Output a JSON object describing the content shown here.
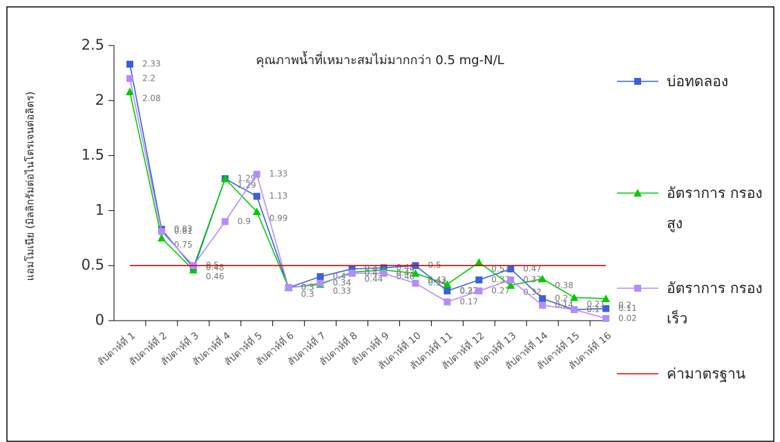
{
  "chart_data": {
    "type": "line",
    "title": "คุณภาพน้ำที่เหมาะสมไม่มากกว่า 0.5 mg-N/L",
    "y_label": "แอมโมเนีย (มิลลิกรัมต่อไนโตรเจนต่อลิตร)",
    "categories": [
      "สัปดาห์ที่ 1",
      "สัปดาห์ที่ 2",
      "สัปดาห์ที่ 3",
      "สัปดาห์ที่ 4",
      "สัปดาห์ที่ 5",
      "สัปดาห์ที่ 6",
      "สัปดาห์ที่ 7",
      "สัปดาห์ที่ 8",
      "สัปดาห์ที่ 9",
      "สัปดาห์ที่ 10",
      "สัปดาห์ที่ 11",
      "สัปดาห์ที่ 12",
      "สัปดาห์ที่ 13",
      "สัปดาห์ที่ 14",
      "สัปดาห์ที่ 15",
      "สัปดาห์ที่ 16"
    ],
    "series": [
      {
        "name": "บ่อทดลอง",
        "color": "#3a5fe0",
        "marker": "square",
        "values": [
          2.33,
          0.83,
          0.48,
          1.29,
          1.13,
          0.3,
          0.4,
          0.47,
          0.48,
          0.5,
          0.27,
          0.37,
          0.47,
          0.2,
          0.1,
          0.11
        ]
      },
      {
        "name": "อัตราการ กรองสูง",
        "color": "#00cc00",
        "marker": "triangle",
        "values": [
          2.08,
          0.75,
          0.46,
          1.29,
          0.99,
          0.3,
          0.33,
          0.44,
          0.46,
          0.43,
          0.33,
          0.53,
          0.32,
          0.38,
          0.21,
          0.2
        ]
      },
      {
        "name": "อัตราการ กรองเร็ว",
        "color": "#b48cff",
        "marker": "square",
        "values": [
          2.2,
          0.81,
          0.5,
          0.9,
          1.33,
          0.3,
          0.34,
          0.43,
          0.43,
          0.34,
          0.17,
          0.27,
          0.37,
          0.14,
          0.1,
          0.02
        ]
      },
      {
        "name": "ค่ามาตรฐาน",
        "color": "#e00000",
        "marker": "none",
        "values": [
          0.5,
          0.5,
          0.5,
          0.5,
          0.5,
          0.5,
          0.5,
          0.5,
          0.5,
          0.5,
          0.5,
          0.5,
          0.5,
          0.5,
          0.5,
          0.5
        ]
      }
    ],
    "ylim": [
      0,
      2.5
    ],
    "yticks": [
      0,
      0.5,
      1,
      1.5,
      2,
      2.5
    ],
    "grid": false
  }
}
